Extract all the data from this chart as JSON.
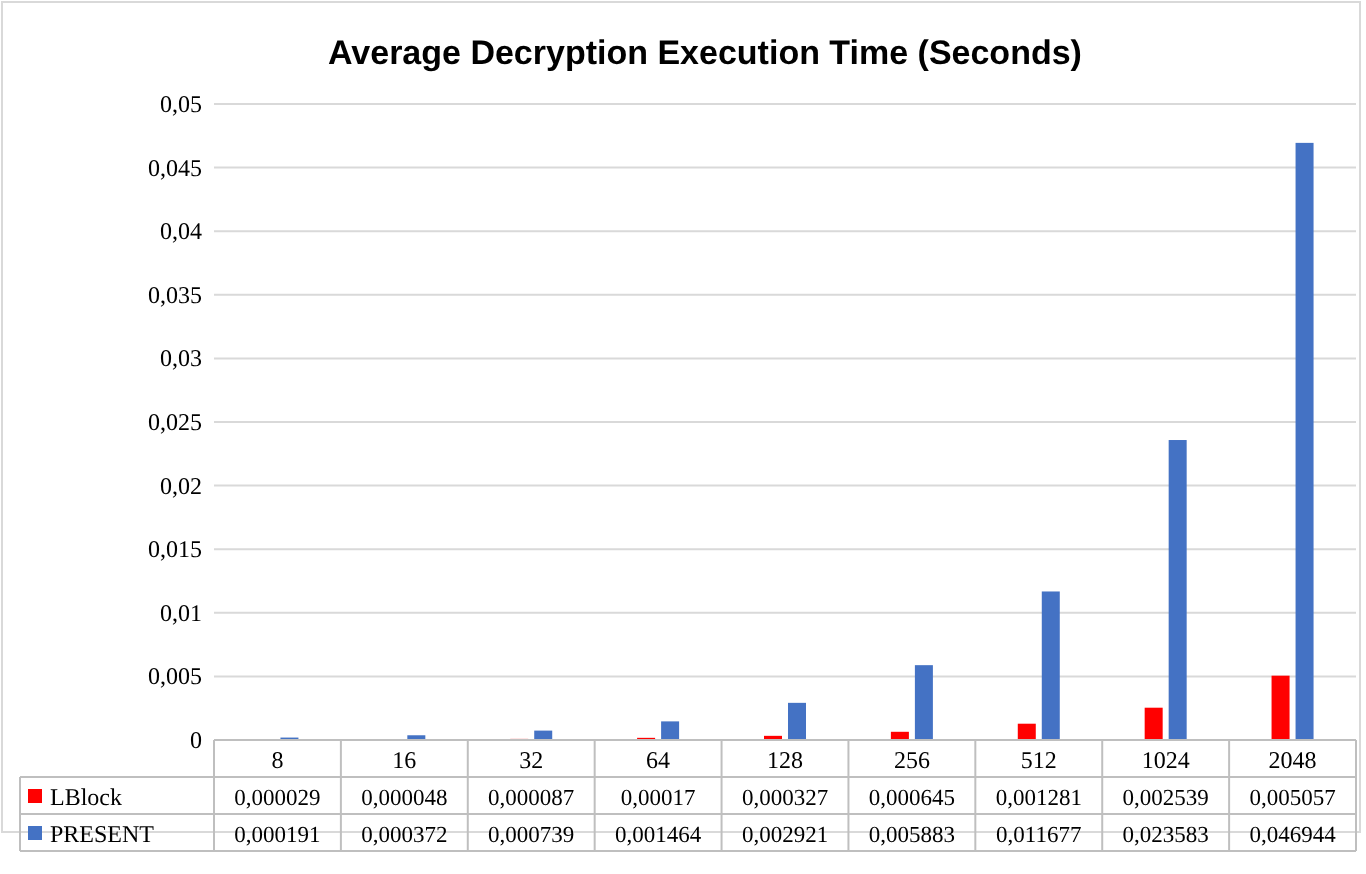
{
  "chart_data": {
    "type": "bar",
    "title": "Average Decryption Execution Time (Seconds)",
    "categories": [
      "8",
      "16",
      "32",
      "64",
      "128",
      "256",
      "512",
      "1024",
      "2048"
    ],
    "series": [
      {
        "name": "LBlock",
        "color": "#ff0000",
        "values": [
          2.9e-05,
          4.8e-05,
          8.7e-05,
          0.00017,
          0.000327,
          0.000645,
          0.001281,
          0.002539,
          0.005057
        ],
        "value_labels": [
          "0,000029",
          "0,000048",
          "0,000087",
          "0,00017",
          "0,000327",
          "0,000645",
          "0,001281",
          "0,002539",
          "0,005057"
        ]
      },
      {
        "name": "PRESENT",
        "color": "#4472c4",
        "values": [
          0.000191,
          0.000372,
          0.000739,
          0.001464,
          0.002921,
          0.005883,
          0.011677,
          0.023583,
          0.046944
        ],
        "value_labels": [
          "0,000191",
          "0,000372",
          "0,000739",
          "0,001464",
          "0,002921",
          "0,005883",
          "0,011677",
          "0,023583",
          "0,046944"
        ]
      }
    ],
    "ylim": [
      0,
      0.05
    ],
    "yticks": [
      0,
      {
        "value": 0.005,
        "label": "0,005"
      },
      {
        "value": 0.01,
        "label": "0,01"
      },
      {
        "value": 0.015,
        "label": "0,015"
      },
      {
        "value": 0.02,
        "label": "0,02"
      },
      {
        "value": 0.025,
        "label": "0,025"
      },
      {
        "value": 0.03,
        "label": "0,03"
      },
      {
        "value": 0.035,
        "label": "0,035"
      },
      {
        "value": 0.04,
        "label": "0,04"
      },
      {
        "value": 0.045,
        "label": "0,045"
      },
      {
        "value": 0.05,
        "label": "0,05"
      }
    ],
    "grid": "y",
    "legend": "bottom left"
  }
}
